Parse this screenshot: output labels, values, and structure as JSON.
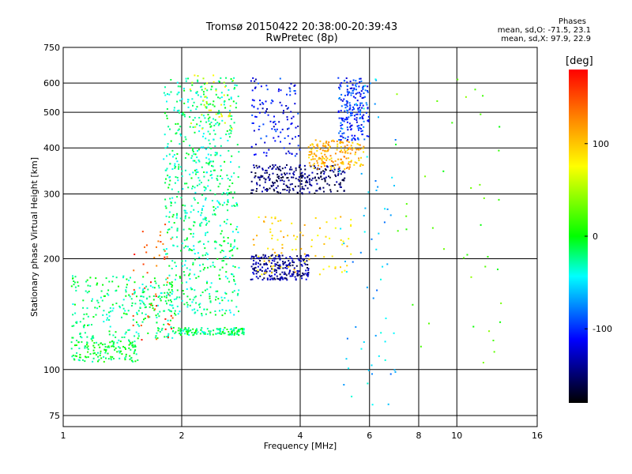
{
  "chart_data": {
    "type": "scatter",
    "title": "Tromsø 20150422 20:38:00-20:39:43",
    "subtitle": "RwPretec (8p)",
    "xlabel": "Frequency [MHz]",
    "ylabel": "Stationary phase Virtual Height [km]",
    "x_scale": "log",
    "y_scale": "log",
    "xlim": [
      1,
      16
    ],
    "ylim": [
      70,
      750
    ],
    "x_ticks": [
      1,
      2,
      4,
      6,
      8,
      10,
      16
    ],
    "y_ticks": [
      75,
      100,
      200,
      300,
      400,
      500,
      600,
      750
    ],
    "grid": true,
    "stats_header": "Phases",
    "stats_line1": "mean, sd,O: -71.5, 23.1",
    "stats_line2": "mean, sd,X:  97.9, 22.9",
    "colorbar": {
      "label": "[deg]",
      "range": [
        -180,
        180
      ],
      "ticks": [
        100,
        0,
        -100
      ]
    },
    "traces": [
      {
        "name": "",
        "x_range": [
          1.05,
          1.55
        ],
        "y_range": [
          105,
          120
        ],
        "phase": -10,
        "count": 140
      },
      {
        "name": "",
        "x_range": [
          1.05,
          1.9
        ],
        "y_range": [
          120,
          180
        ],
        "phase": -20,
        "count": 260
      },
      {
        "name": "",
        "x_range": [
          1.5,
          1.9
        ],
        "y_range": [
          120,
          250
        ],
        "phase": 150,
        "count": 50
      },
      {
        "name": "",
        "x_range": [
          1.9,
          2.9
        ],
        "y_range": [
          124,
          130
        ],
        "phase": -20,
        "count": 140
      },
      {
        "name": "",
        "x_range": [
          1.8,
          2.8
        ],
        "y_range": [
          140,
          620
        ],
        "phase": -25,
        "count": 700
      },
      {
        "name": "",
        "x_range": [
          2.1,
          2.7
        ],
        "y_range": [
          450,
          630
        ],
        "phase": 60,
        "count": 40
      },
      {
        "name": "",
        "x_range": [
          3.0,
          4.2
        ],
        "y_range": [
          175,
          205
        ],
        "phase": -140,
        "count": 220
      },
      {
        "name": "",
        "x_range": [
          3.0,
          5.2
        ],
        "y_range": [
          300,
          360
        ],
        "phase": -150,
        "count": 260
      },
      {
        "name": "",
        "x_range": [
          4.2,
          5.8
        ],
        "y_range": [
          350,
          420
        ],
        "phase": 110,
        "count": 180
      },
      {
        "name": "",
        "x_range": [
          5.0,
          6.0
        ],
        "y_range": [
          420,
          620
        ],
        "phase": -100,
        "count": 200
      },
      {
        "name": "",
        "x_range": [
          3.0,
          5.4
        ],
        "y_range": [
          180,
          260
        ],
        "phase": 95,
        "count": 90
      },
      {
        "name": "",
        "x_range": [
          3.0,
          4.0
        ],
        "y_range": [
          380,
          620
        ],
        "phase": -110,
        "count": 120
      },
      {
        "name": "",
        "x_range": [
          5.0,
          7.0
        ],
        "y_range": [
          80,
          620
        ],
        "phase": -60,
        "count": 70
      },
      {
        "name": "",
        "x_range": [
          7.0,
          13.0
        ],
        "y_range": [
          80,
          620
        ],
        "phase": 20,
        "count": 40
      }
    ]
  }
}
